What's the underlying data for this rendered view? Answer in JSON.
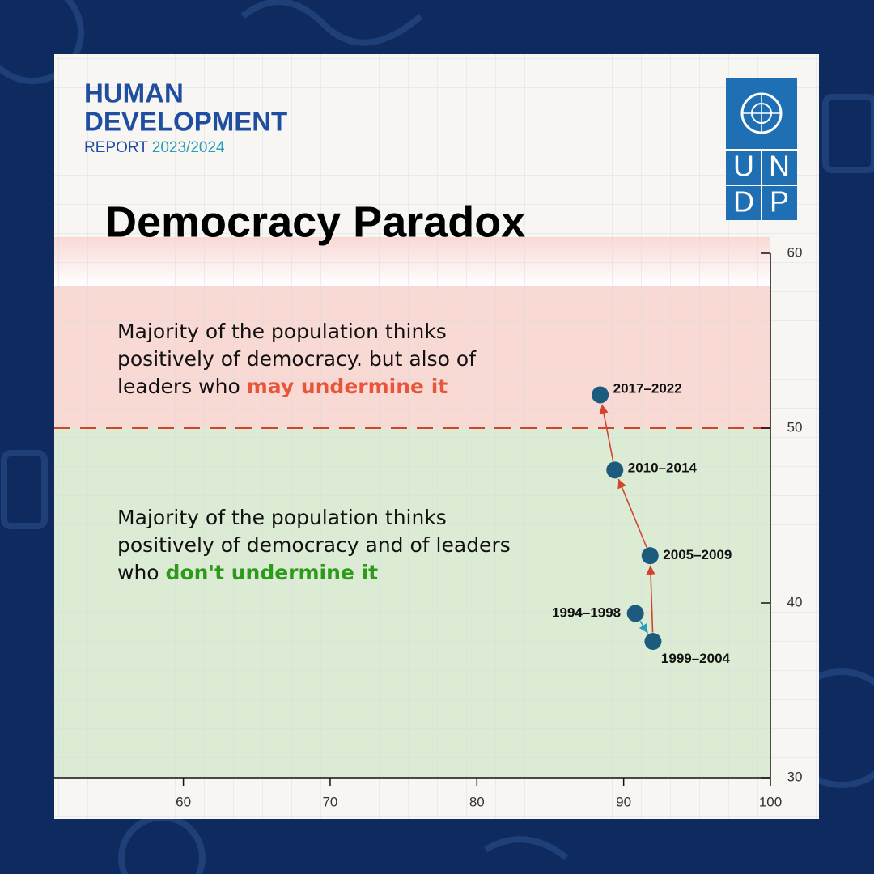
{
  "header": {
    "line1": "HUMAN",
    "line2": "DEVELOPMENT",
    "report": "REPORT",
    "years": "2023/2024"
  },
  "logo": {
    "letters": [
      "U",
      "N",
      "D",
      "P"
    ]
  },
  "chart_data": {
    "type": "scatter",
    "title": "Democracy Paradox",
    "x": [
      90.8,
      92.0,
      91.8,
      89.4,
      88.4
    ],
    "series": [
      {
        "values": [
          39.4,
          37.8,
          42.7,
          47.6,
          51.9
        ],
        "color": "#1d5b7e",
        "point_labels": [
          "1994–1998",
          "1999–2004",
          "2005–2009",
          "2010–2014",
          "2017–2022"
        ],
        "arrow_colors": [
          "#2a9db8",
          "#d2452c",
          "#d2452c",
          "#d2452c"
        ]
      }
    ],
    "xlim": [
      51.2,
      100
    ],
    "xticks": [
      60,
      70,
      80,
      90,
      100
    ],
    "ylim": [
      30,
      60
    ],
    "yticks": [
      30,
      40,
      50,
      60
    ],
    "threshold": {
      "value": 50,
      "color": "#d2452c",
      "above_color": "#f9d9d4",
      "below_color": "#dcebd3"
    },
    "annotations": [
      {
        "text": "Majority of the population thinks positively of democracy. but also of leaders who ",
        "highlight": "may undermine it",
        "color": "#e8553a"
      },
      {
        "text": "Majority of the population thinks positively of democracy and of leaders who ",
        "highlight": "don't undermine it",
        "color": "#2e9a1a"
      }
    ]
  }
}
